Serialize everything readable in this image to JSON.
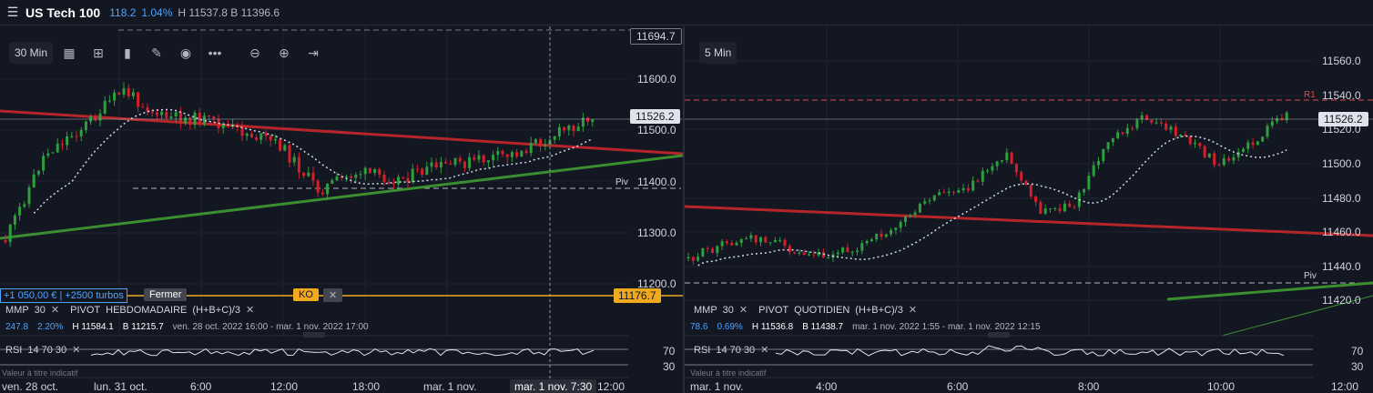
{
  "header": {
    "menu_icon": "hamburger-icon",
    "title": "US Tech 100",
    "change_abs": "118.2",
    "change_pct": "1.04%",
    "high_low": "H 11537.8  B 11396.6"
  },
  "left": {
    "timeframe": "30 Min",
    "toolbar_icons": [
      "calculator-icon",
      "layout-icon",
      "bar-chart-icon",
      "pencil-icon",
      "eye-icon",
      "more-icon",
      "zoom-out-icon",
      "zoom-in-icon",
      "jump-to-end-icon"
    ],
    "y_labels": [
      "11694.7",
      "11600.0",
      "11500.0",
      "11400.0",
      "11300.0",
      "11200.0"
    ],
    "price_box": "11526.2",
    "piv": "Piv",
    "ko_price": "11176.7",
    "position": "+1 050,00 € | +2500 turbos",
    "fermer": "Fermer",
    "ko": "KO",
    "ko_close": "✕",
    "mmp_label": "MMP",
    "mmp_val": "30",
    "pivot_label": "PIVOT",
    "pivot_type": "HEBDOMADAIRE",
    "pivot_formula": "(H+B+C)/3",
    "stat_abs": "247.8",
    "stat_pct": "2.20%",
    "stat_h": "H 11584.1",
    "stat_b": "B 11215.7",
    "stat_range": "ven. 28 oct. 2022 16:00 - mar. 1 nov. 2022 17:00",
    "rsi_label": "RSI",
    "rsi_params": "14  70  30",
    "rsi_70": "70",
    "rsi_30": "30",
    "note": "Valeur à titre indicatif",
    "x_labels": [
      "ven. 28 oct.",
      "lun. 31 oct.",
      "6:00",
      "12:00",
      "18:00",
      "mar. 1 nov.",
      "12:00"
    ],
    "x_highlight": "mar. 1 nov. 7:30"
  },
  "right": {
    "timeframe": "5 Min",
    "y_labels": [
      "11560.0",
      "11540.0",
      "11520.0",
      "11500.0",
      "11480.0",
      "11460.0",
      "11440.0",
      "11420.0"
    ],
    "price_box": "11526.2",
    "r1": "R1",
    "piv": "Piv",
    "mmp_label": "MMP",
    "mmp_val": "30",
    "pivot_label": "PIVOT",
    "pivot_type": "QUOTIDIEN",
    "pivot_formula": "(H+B+C)/3",
    "stat_abs": "78.6",
    "stat_pct": "0.69%",
    "stat_h": "H 11536.8",
    "stat_b": "B 11438.7",
    "stat_range": "mar. 1 nov. 2022 1:55 - mar. 1 nov. 2022 12:15",
    "rsi_label": "RSI",
    "rsi_params": "14  70  30",
    "rsi_70": "70",
    "rsi_30": "30",
    "note": "Valeur à titre indicatif",
    "x_labels": [
      "mar. 1 nov.",
      "4:00",
      "6:00",
      "8:00",
      "10:00",
      "12:00"
    ]
  },
  "colors": {
    "up": "#2e9e3e",
    "down": "#d3202c",
    "bg": "#131722",
    "ma": "#cfd8ea",
    "red_line": "#b5262a",
    "green_line": "#3b8e2f",
    "ko": "#f0a81c",
    "accent": "#4ea3ff"
  }
}
